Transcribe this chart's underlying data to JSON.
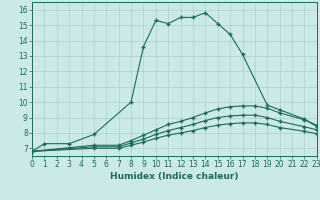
{
  "xlabel": "Humidex (Indice chaleur)",
  "xlim": [
    0,
    23
  ],
  "ylim": [
    6.5,
    16.5
  ],
  "xticks": [
    0,
    1,
    2,
    3,
    4,
    5,
    6,
    7,
    8,
    9,
    10,
    11,
    12,
    13,
    14,
    15,
    16,
    17,
    18,
    19,
    20,
    21,
    22,
    23
  ],
  "yticks": [
    7,
    8,
    9,
    10,
    11,
    12,
    13,
    14,
    15,
    16
  ],
  "bg_color": "#cce9e9",
  "grid_color": "#aad0d0",
  "line_color": "#1a6b5a",
  "s1_x": [
    0,
    1,
    3,
    5,
    8,
    9,
    10,
    11,
    12,
    13,
    14,
    15,
    16,
    17,
    19,
    20,
    22,
    23
  ],
  "s1_y": [
    6.8,
    7.3,
    7.3,
    7.9,
    10.0,
    13.6,
    15.3,
    15.1,
    15.5,
    15.5,
    15.8,
    15.1,
    14.4,
    13.1,
    9.8,
    9.5,
    8.9,
    8.4
  ],
  "s2_x": [
    0,
    5,
    7,
    8,
    9,
    10,
    11,
    12,
    13,
    14,
    15,
    16,
    17,
    18,
    19,
    20,
    22,
    23
  ],
  "s2_y": [
    6.8,
    7.2,
    7.2,
    7.5,
    7.85,
    8.2,
    8.55,
    8.75,
    9.0,
    9.3,
    9.55,
    9.7,
    9.75,
    9.75,
    9.6,
    9.3,
    8.85,
    8.5
  ],
  "s3_x": [
    0,
    5,
    7,
    8,
    9,
    10,
    11,
    12,
    13,
    14,
    15,
    16,
    17,
    18,
    19,
    20,
    22,
    23
  ],
  "s3_y": [
    6.8,
    7.1,
    7.1,
    7.35,
    7.6,
    7.9,
    8.15,
    8.35,
    8.55,
    8.8,
    9.0,
    9.1,
    9.15,
    9.15,
    9.0,
    8.75,
    8.4,
    8.2
  ],
  "s4_x": [
    0,
    5,
    7,
    8,
    9,
    10,
    11,
    12,
    13,
    14,
    15,
    16,
    17,
    18,
    19,
    20,
    22,
    23
  ],
  "s4_y": [
    6.8,
    7.0,
    7.0,
    7.2,
    7.4,
    7.65,
    7.85,
    8.0,
    8.15,
    8.35,
    8.5,
    8.6,
    8.65,
    8.65,
    8.55,
    8.35,
    8.1,
    7.95
  ]
}
